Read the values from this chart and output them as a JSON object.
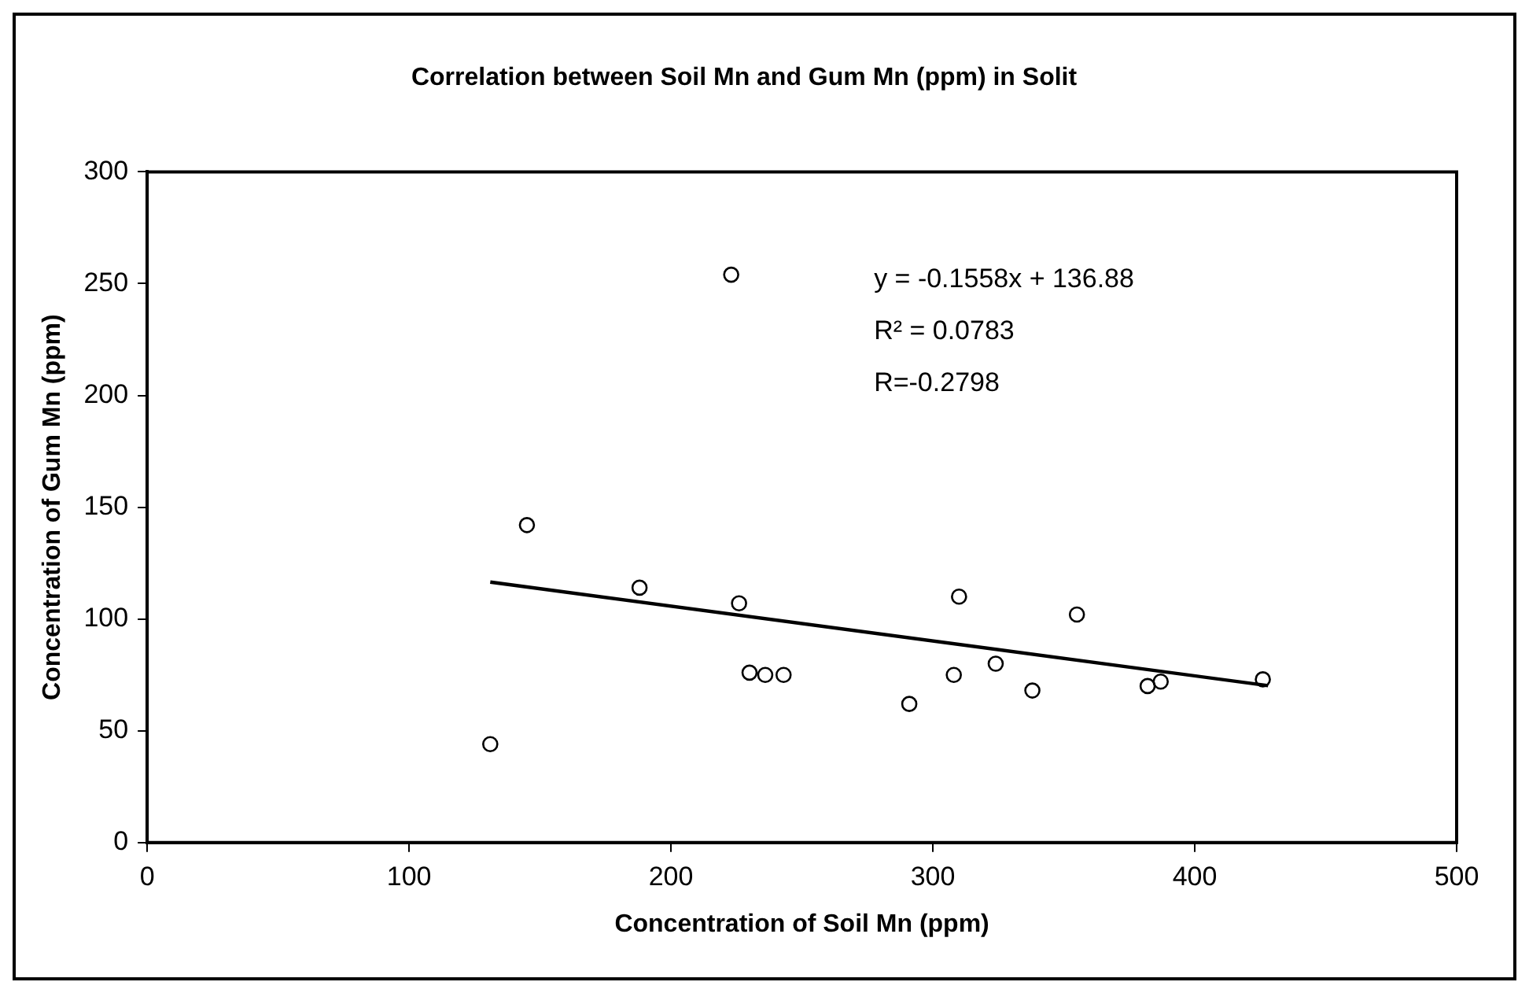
{
  "chart_data": {
    "type": "scatter",
    "title": "Correlation between Soil Mn and Gum Mn (ppm) in Solit",
    "xlabel": "Concentration of Soil Mn (ppm)",
    "ylabel": "Concentration of Gum Mn (ppm)",
    "xlim": [
      0,
      500
    ],
    "xticks": [
      0,
      100,
      200,
      300,
      400,
      500
    ],
    "ylim": [
      0,
      300
    ],
    "yticks": [
      0,
      50,
      100,
      150,
      200,
      250,
      300
    ],
    "grid": false,
    "legend": false,
    "marker": "circle",
    "series": [
      {
        "color": "#000000",
        "x": [
          131,
          145,
          188,
          223,
          226,
          230,
          236,
          243,
          291,
          308,
          310,
          324,
          338,
          355,
          382,
          387,
          426
        ],
        "values": [
          44,
          142,
          114,
          254,
          107,
          76,
          75,
          75,
          62,
          75,
          110,
          80,
          68,
          102,
          70,
          72,
          73
        ]
      },
      {
        "type": "line",
        "marker": "none",
        "color": "#000000",
        "x": [
          131,
          428
        ],
        "values": [
          116.5,
          70.2
        ]
      }
    ],
    "annotations": [
      "y = -0.1558x + 136.88",
      "R² = 0.0783",
      "R=-0.2798"
    ]
  }
}
